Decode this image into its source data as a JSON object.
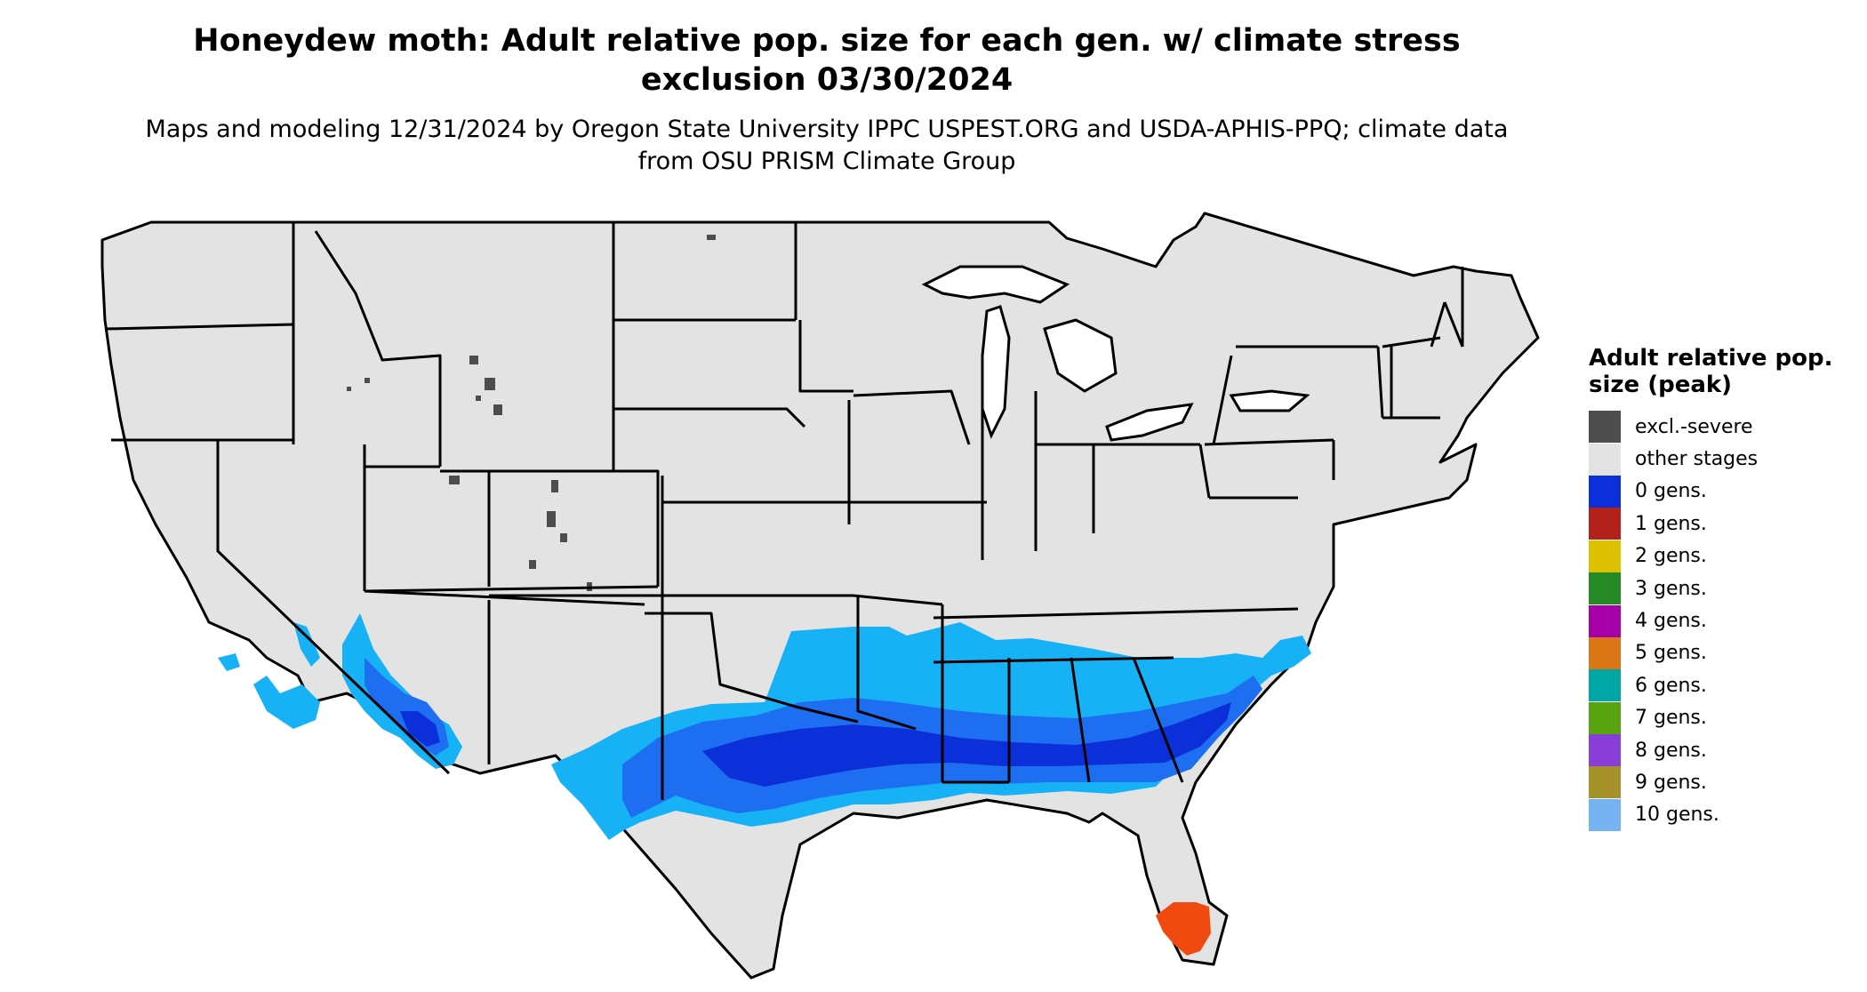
{
  "title": "Honeydew moth: Adult relative pop. size for each gen. w/ climate stress exclusion 03/30/2024",
  "subtitle": "Maps and modeling 12/31/2024 by Oregon State University IPPC USPEST.ORG and USDA-APHIS-PPQ; climate data from OSU PRISM Climate Group",
  "legend": {
    "title": "Adult relative pop. size (peak)",
    "items": [
      {
        "label": "excl.-severe",
        "color": "#4d4d4d"
      },
      {
        "label": "other stages",
        "color": "#e3e3e3"
      },
      {
        "label": "0 gens.",
        "color": "#0b2fd8"
      },
      {
        "label": "1 gens.",
        "color": "#b3221a"
      },
      {
        "label": "2 gens.",
        "color": "#dcc100"
      },
      {
        "label": "3 gens.",
        "color": "#258a26"
      },
      {
        "label": "4 gens.",
        "color": "#a600a8"
      },
      {
        "label": "5 gens.",
        "color": "#da7614"
      },
      {
        "label": "6 gens.",
        "color": "#00a6a6"
      },
      {
        "label": "7 gens.",
        "color": "#5aa310"
      },
      {
        "label": "8 gens.",
        "color": "#8a3ed8"
      },
      {
        "label": "9 gens.",
        "color": "#a5922a"
      },
      {
        "label": "10 gens.",
        "color": "#75b3f2"
      }
    ]
  },
  "map": {
    "land_color": "#e3e3e3",
    "border_color": "#000000",
    "colors": {
      "light_blue": "#17b2f5",
      "mid_blue": "#1d6ef0",
      "dark_blue": "#0b2fd8",
      "severe": "#4d4d4d",
      "red": "#f04a10"
    }
  }
}
